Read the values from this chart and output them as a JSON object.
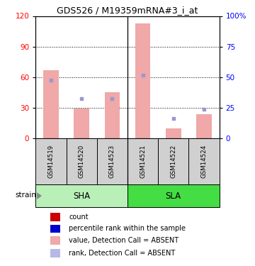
{
  "title": "GDS526 / M19359mRNA#3_i_at",
  "samples": [
    "GSM14519",
    "GSM14520",
    "GSM14523",
    "GSM14521",
    "GSM14522",
    "GSM14524"
  ],
  "bar_values": [
    67,
    29,
    45,
    113,
    10,
    24
  ],
  "rank_values": [
    47.5,
    32.5,
    32.5,
    51.5,
    16.5,
    24.0
  ],
  "left_ylim": [
    0,
    120
  ],
  "right_ylim": [
    0,
    100
  ],
  "left_yticks": [
    0,
    30,
    60,
    90,
    120
  ],
  "right_yticks": [
    0,
    25,
    50,
    75,
    100
  ],
  "right_yticklabels": [
    "0",
    "25",
    "50",
    "75",
    "100%"
  ],
  "bar_color": "#f0a8a8",
  "rank_color": "#9898d0",
  "sha_color": "#b8f0b8",
  "sla_color": "#44dd44",
  "sample_box_color": "#d0d0d0",
  "legend_items": [
    {
      "label": "count",
      "color": "#cc0000"
    },
    {
      "label": "percentile rank within the sample",
      "color": "#0000cc"
    },
    {
      "label": "value, Detection Call = ABSENT",
      "color": "#f0a8a8"
    },
    {
      "label": "rank, Detection Call = ABSENT",
      "color": "#b8b8e8"
    }
  ]
}
